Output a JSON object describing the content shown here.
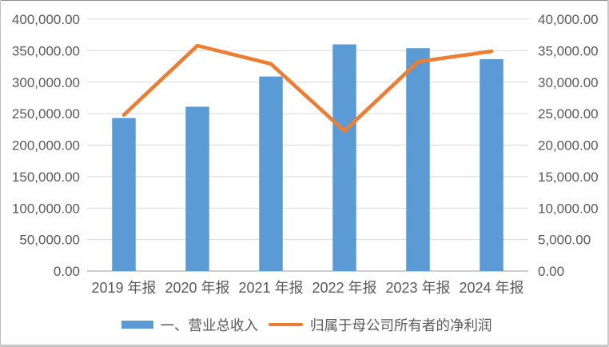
{
  "chart_data": {
    "type": "combo",
    "categories": [
      "2019 年报",
      "2020 年报",
      "2021 年报",
      "2022 年报",
      "2023 年报",
      "2024 年报"
    ],
    "series": [
      {
        "name": "一、营业总收入",
        "type": "bar",
        "axis": "left",
        "color": "#5B9BD5",
        "values": [
          243000,
          261000,
          309000,
          360000,
          354000,
          336500
        ]
      },
      {
        "name": "归属于母公司所有者的净利润",
        "type": "line",
        "axis": "right",
        "color": "#ED7D31",
        "values": [
          24800,
          35800,
          32900,
          22250,
          33250,
          34900
        ]
      }
    ],
    "left_axis": {
      "min": 0,
      "max": 400000,
      "step": 50000,
      "tick_labels": [
        "400,000.00",
        "350,000.00",
        "300,000.00",
        "250,000.00",
        "200,000.00",
        "150,000.00",
        "100,000.00",
        "50,000.00",
        "0.00"
      ]
    },
    "right_axis": {
      "min": 0,
      "max": 40000,
      "step": 5000,
      "tick_labels": [
        "40,000.00",
        "35,000.00",
        "30,000.00",
        "25,000.00",
        "20,000.00",
        "15,000.00",
        "10,000.00",
        "5,000.00",
        "0.00"
      ]
    },
    "title": "",
    "xlabel": "",
    "ylabel": "",
    "gridlines": true,
    "legend_position": "bottom",
    "grid_color": "#D9D9D9",
    "axis_line_color": "#BFBFBF",
    "text_color": "#595959"
  }
}
